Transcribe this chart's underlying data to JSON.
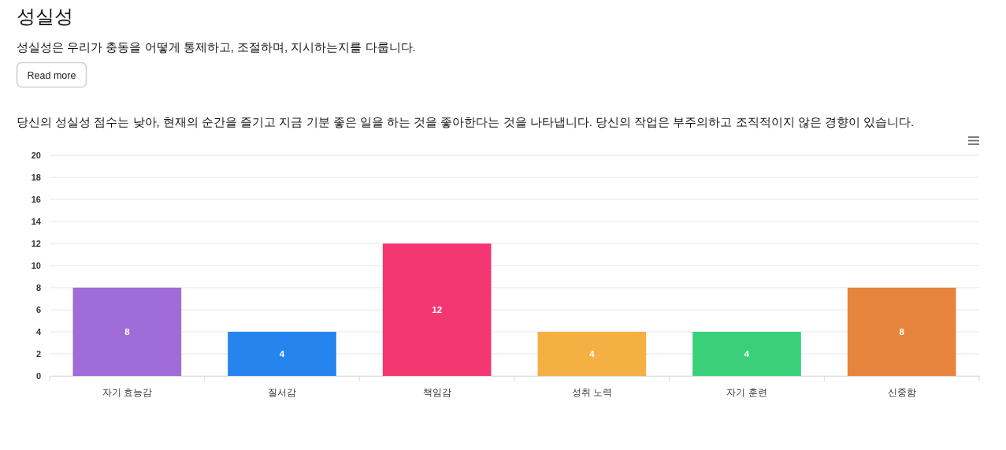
{
  "chart_data": {
    "type": "bar",
    "title": "성실성",
    "subtitle": "성실성은 우리가 충동을 어떻게 통제하고, 조절하며, 지시하는지를 다룹니다.",
    "annotations": [
      "Read more",
      "당신의 성실성 점수는 낮아, 현재의 순간을 즐기고 지금 기분 좋은 일을 하는 것을 좋아한다는 것을 나타냅니다. 당신의 작업은 부주의하고 조직적이지 않은 경향이 있습니다."
    ],
    "categories": [
      "자기 효능감",
      "질서감",
      "책임감",
      "성취 노력",
      "자기 훈련",
      "신중함"
    ],
    "values": [
      8,
      4,
      12,
      4,
      4,
      8
    ],
    "colors": [
      "#a06cd8",
      "#2684ef",
      "#f43673",
      "#f5b043",
      "#3ad07a",
      "#e6843e"
    ],
    "ylim": [
      0,
      20
    ],
    "yticks": [
      0,
      2,
      4,
      6,
      8,
      10,
      12,
      14,
      16,
      18,
      20
    ],
    "grid": "y",
    "data_labels": true
  }
}
